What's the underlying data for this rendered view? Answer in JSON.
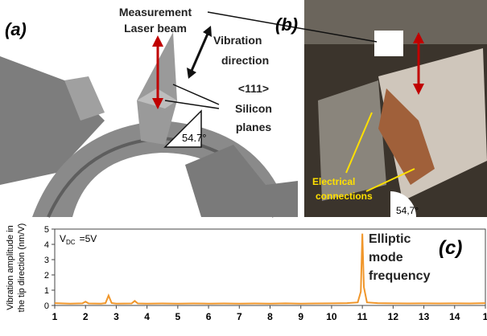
{
  "panels": {
    "a": {
      "label": "(a)",
      "laser": [
        "Measurement",
        "Laser beam"
      ],
      "vibration": [
        "Vibration",
        "direction"
      ],
      "planes": [
        "<111>",
        "Silicon",
        "planes"
      ],
      "angle": "54.7°"
    },
    "b": {
      "label": "(b)",
      "connections": [
        "Electrical",
        "connections"
      ],
      "angle": "54,7°"
    }
  },
  "chart_data": {
    "type": "line",
    "panel_label": "(c)",
    "y_label": [
      "Vibration amplitude in",
      "the tip direction (nm/V)"
    ],
    "condition": {
      "symbol": "V",
      "subscript": "DC",
      "text": "=5V"
    },
    "annotation": [
      "Elliptic",
      "mode",
      "frequency"
    ],
    "x": [
      1,
      1.5,
      1.9,
      2,
      2.1,
      2.5,
      2.65,
      2.75,
      2.85,
      3,
      3.5,
      3.6,
      3.7,
      4,
      4.5,
      5,
      5.5,
      6,
      6.5,
      7,
      7.5,
      8,
      8.5,
      9,
      9.5,
      10,
      10.5,
      10.85,
      10.95,
      11,
      11.05,
      11.15,
      11.5,
      12,
      12.5,
      13,
      13.5,
      14,
      14.5,
      15
    ],
    "series": [
      {
        "color": "#f0962a",
        "values": [
          0.15,
          0.12,
          0.14,
          0.25,
          0.13,
          0.12,
          0.15,
          0.65,
          0.16,
          0.12,
          0.13,
          0.3,
          0.13,
          0.12,
          0.13,
          0.12,
          0.13,
          0.12,
          0.13,
          0.12,
          0.13,
          0.12,
          0.14,
          0.12,
          0.13,
          0.14,
          0.15,
          0.2,
          0.9,
          4.7,
          1.2,
          0.2,
          0.15,
          0.14,
          0.13,
          0.14,
          0.13,
          0.14,
          0.13,
          0.15
        ]
      }
    ],
    "xlim": [
      1,
      15
    ],
    "xticks": [
      1,
      2,
      3,
      4,
      5,
      6,
      7,
      8,
      9,
      10,
      11,
      12,
      13,
      14,
      {
        "value": 15,
        "label": "1"
      }
    ],
    "ylim": [
      0,
      5
    ],
    "yticks": [
      0,
      1,
      2,
      3,
      4,
      5
    ],
    "grid": false
  }
}
